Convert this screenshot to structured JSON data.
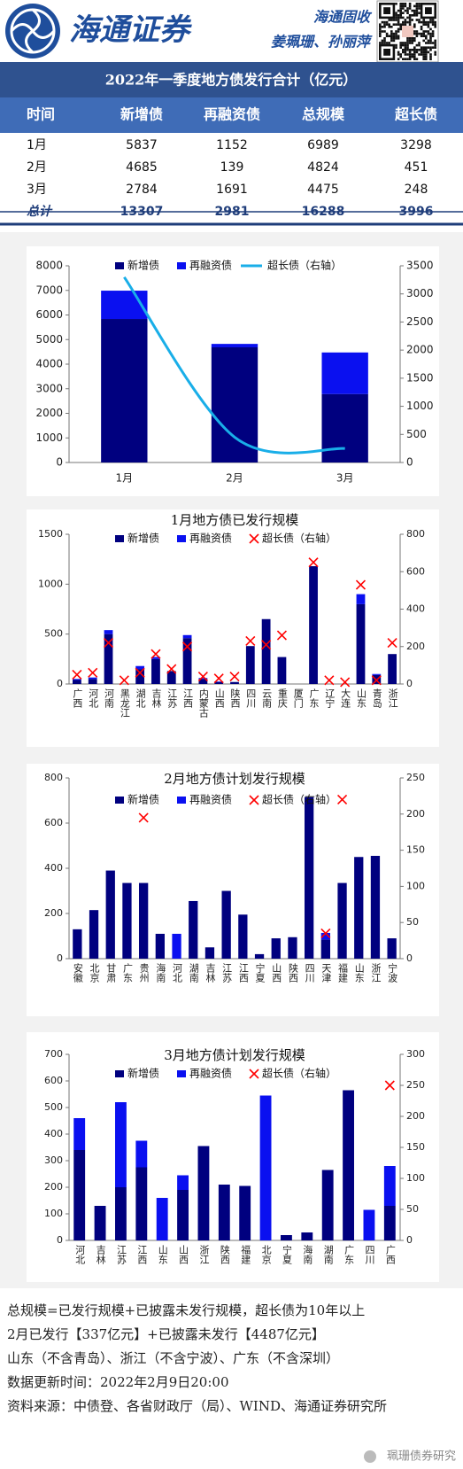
{
  "header": {
    "brand": "海通证券",
    "team": "海通固收",
    "authors": "姜珮珊、孙丽萍"
  },
  "table": {
    "title": "2022年一季度地方债发行合计（亿元）",
    "columns": [
      "时间",
      "新增债",
      "再融资债",
      "总规模",
      "超长债"
    ],
    "rows": [
      [
        "1月",
        5837,
        1152,
        6989,
        3298
      ],
      [
        "2月",
        4685,
        139,
        4824,
        451
      ],
      [
        "3月",
        2784,
        1691,
        4475,
        248
      ],
      [
        "总计",
        13307,
        2981,
        16288,
        3996
      ]
    ]
  },
  "chart_data": [
    {
      "type": "bar",
      "stacked": true,
      "categories": [
        "1月",
        "2月",
        "3月"
      ],
      "series": [
        {
          "name": "新增债",
          "type": "bar",
          "color": "#00007f",
          "values": [
            5837,
            4685,
            2784
          ]
        },
        {
          "name": "再融资债",
          "type": "bar",
          "color": "#0a10f0",
          "values": [
            1152,
            139,
            1691
          ]
        },
        {
          "name": "超长债（右轴）",
          "type": "line",
          "axis": "y2",
          "color": "#19aee8",
          "values": [
            3298,
            451,
            248
          ]
        }
      ],
      "ylim": [
        0,
        8000
      ],
      "yticks": [
        0,
        1000,
        2000,
        3000,
        4000,
        5000,
        6000,
        7000,
        8000
      ],
      "y2lim": [
        0,
        3500
      ],
      "y2ticks": [
        0,
        500,
        1000,
        1500,
        2000,
        2500,
        3000,
        3500
      ]
    },
    {
      "type": "bar",
      "stacked": true,
      "title": "1月地方债已发行规模",
      "categories": [
        "广西",
        "河北",
        "河南",
        "黑龙江",
        "湖北",
        "吉林",
        "江苏",
        "江西",
        "内蒙古",
        "山西",
        "陕西",
        "四川",
        "云南",
        "重庆",
        "厦门",
        "广东",
        "辽宁",
        "大连",
        "山东",
        "青岛",
        "浙江"
      ],
      "series": [
        {
          "name": "新增债",
          "type": "bar",
          "color": "#00007f",
          "values": [
            40,
            50,
            500,
            0,
            150,
            250,
            130,
            460,
            50,
            20,
            20,
            380,
            650,
            270,
            0,
            1180,
            0,
            0,
            800,
            90,
            300
          ]
        },
        {
          "name": "再融资债",
          "type": "bar",
          "color": "#0a10f0",
          "values": [
            10,
            15,
            40,
            0,
            30,
            20,
            0,
            30,
            10,
            5,
            0,
            0,
            0,
            0,
            0,
            0,
            0,
            0,
            100,
            10,
            0
          ]
        },
        {
          "name": "超长债（右轴）",
          "type": "scatter",
          "axis": "y2",
          "color": "#ff0000",
          "values": [
            50,
            60,
            220,
            20,
            60,
            160,
            80,
            200,
            40,
            30,
            40,
            230,
            210,
            260,
            null,
            650,
            20,
            10,
            530,
            20,
            220
          ]
        }
      ],
      "ylim": [
        0,
        1500
      ],
      "yticks": [
        0,
        500,
        1000,
        1500
      ],
      "y2lim": [
        0,
        800
      ],
      "y2ticks": [
        0,
        200,
        400,
        600,
        800
      ]
    },
    {
      "type": "bar",
      "stacked": true,
      "title": "2月地方债计划发行规模",
      "categories": [
        "安徽",
        "北京",
        "甘肃",
        "广东",
        "贵州",
        "海南",
        "河北",
        "湖南",
        "吉林",
        "江苏",
        "江西",
        "宁夏",
        "山西",
        "陕西",
        "四川",
        "天津",
        "福建",
        "山东",
        "浙江",
        "宁波"
      ],
      "series": [
        {
          "name": "新增债",
          "type": "bar",
          "color": "#00007f",
          "values": [
            130,
            215,
            390,
            335,
            335,
            110,
            0,
            255,
            50,
            300,
            195,
            20,
            90,
            95,
            715,
            85,
            335,
            450,
            455,
            90
          ]
        },
        {
          "name": "再融资债",
          "type": "bar",
          "color": "#0a10f0",
          "values": [
            0,
            0,
            0,
            0,
            0,
            0,
            110,
            0,
            0,
            0,
            0,
            0,
            0,
            0,
            0,
            29,
            0,
            0,
            0,
            0
          ]
        },
        {
          "name": "超长债（右轴）",
          "type": "scatter",
          "axis": "y2",
          "color": "#ff0000",
          "values": [
            null,
            null,
            null,
            null,
            195,
            null,
            null,
            null,
            null,
            null,
            null,
            null,
            null,
            null,
            null,
            35,
            220,
            null,
            null,
            null
          ]
        }
      ],
      "ylim": [
        0,
        800
      ],
      "yticks": [
        0,
        200,
        400,
        600,
        800
      ],
      "y2lim": [
        0,
        250
      ],
      "y2ticks": [
        0,
        50,
        100,
        150,
        200,
        250
      ]
    },
    {
      "type": "bar",
      "stacked": true,
      "title": "3月地方债计划发行规模",
      "categories": [
        "河北",
        "吉林",
        "江苏",
        "江西",
        "山东",
        "山西",
        "浙江",
        "陕西",
        "福建",
        "北京",
        "宁夏",
        "海南",
        "湖南",
        "广东",
        "四川",
        "广西"
      ],
      "series": [
        {
          "name": "新增债",
          "type": "bar",
          "color": "#00007f",
          "values": [
            340,
            130,
            200,
            275,
            0,
            190,
            355,
            210,
            205,
            0,
            20,
            30,
            265,
            565,
            0,
            130
          ]
        },
        {
          "name": "再融资债",
          "type": "bar",
          "color": "#0a10f0",
          "values": [
            120,
            0,
            320,
            100,
            160,
            55,
            0,
            0,
            0,
            545,
            0,
            0,
            0,
            0,
            115,
            150
          ]
        },
        {
          "name": "超长债（右轴）",
          "type": "scatter",
          "axis": "y2",
          "color": "#ff0000",
          "values": [
            null,
            null,
            null,
            null,
            null,
            null,
            null,
            null,
            null,
            null,
            null,
            null,
            null,
            null,
            null,
            250
          ]
        }
      ],
      "ylim": [
        0,
        700
      ],
      "yticks": [
        0,
        100,
        200,
        300,
        400,
        500,
        600,
        700
      ],
      "y2lim": [
        0,
        300
      ],
      "y2ticks": [
        0,
        50,
        100,
        150,
        200,
        250,
        300
      ]
    }
  ],
  "notes": [
    "总规模=已发行规模+已披露未发行规模，超长债为10年以上",
    "2月已发行【337亿元】+已披露未发行【4487亿元】",
    "山东（不含青岛）、浙江（不含宁波）、广东（不含深圳）",
    "数据更新时间：2022年2月9日20:00",
    "资料来源：中债登、各省财政厅（局）、WIND、海通证券研究所"
  ],
  "watermark": "珮珊债券研究"
}
